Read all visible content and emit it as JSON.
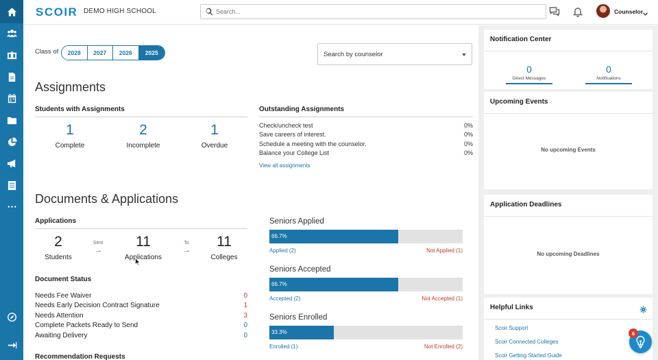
{
  "app": {
    "logo": "SCOIR",
    "school": "DEMO HIGH SCHOOL"
  },
  "search": {
    "placeholder": "Search..."
  },
  "user": {
    "name": "Counselor"
  },
  "nav": {
    "icons": [
      "home-icon",
      "students-icon",
      "colleges-icon",
      "documents-icon",
      "calendar-icon",
      "folder-icon",
      "reports-icon",
      "announcements-icon",
      "forms-icon",
      "more-icon",
      "explore-icon",
      "collapse-icon"
    ]
  },
  "filters": {
    "class_of_label": "Class of",
    "years": [
      "2028",
      "2027",
      "2026",
      "2025"
    ],
    "selected_year": "2025",
    "counselor_placeholder": "Search by counselor"
  },
  "assignments": {
    "title": "Assignments",
    "students_heading": "Students with Assignments",
    "stats": [
      {
        "value": "1",
        "label": "Complete"
      },
      {
        "value": "2",
        "label": "Incomplete"
      },
      {
        "value": "1",
        "label": "Overdue"
      }
    ],
    "outstanding_heading": "Outstanding Assignments",
    "outstanding": [
      {
        "name": "Check/uncheck test",
        "pct": "0%"
      },
      {
        "name": "Save careers of interest.",
        "pct": "0%"
      },
      {
        "name": "Schedule a meeting with the counselor.",
        "pct": "0%"
      },
      {
        "name": "Balance your College List",
        "pct": "0%"
      }
    ],
    "view_all": "View all assignments"
  },
  "docs": {
    "title": "Documents & Applications",
    "applications_heading": "Applications",
    "students": {
      "value": "2",
      "label": "Students"
    },
    "sent_label": "Sent",
    "applications": {
      "value": "11",
      "label": "Applications"
    },
    "to_label": "To",
    "colleges": {
      "value": "11",
      "label": "Colleges"
    },
    "arrow": "→",
    "status_heading": "Document Status",
    "status": [
      {
        "label": "Needs Fee Waiver",
        "count": "0",
        "color": "#c0392b"
      },
      {
        "label": "Needs Early Decision Contract Signature",
        "count": "1",
        "color": "#c0392b"
      },
      {
        "label": "Needs Attention",
        "count": "3",
        "color": "#c0392b"
      },
      {
        "label": "Complete Packets Ready to Send",
        "count": "0",
        "color": "#1a75a8"
      },
      {
        "label": "Awaiting Delivery",
        "count": "0",
        "color": "#1a75a8"
      }
    ],
    "recommendation_heading": "Recommendation Requests"
  },
  "seniors": [
    {
      "title": "Seniors Applied",
      "pct_label": "66.7%",
      "fraction": 0.667,
      "left": "Applied (2)",
      "right": "Not Applied (1)"
    },
    {
      "title": "Seniors Accepted",
      "pct_label": "66.7%",
      "fraction": 0.667,
      "left": "Accepted (2)",
      "right": "Not Accepted (1)"
    },
    {
      "title": "Seniors Enrolled",
      "pct_label": "33.3%",
      "fraction": 0.333,
      "left": "Enrolled (1)",
      "right": "Not Enrolled (2)"
    }
  ],
  "notification_center": {
    "title": "Notification Center",
    "direct_messages": {
      "value": "0",
      "label": "Direct Messages"
    },
    "notifications": {
      "value": "0",
      "label": "Notifications"
    }
  },
  "upcoming_events": {
    "title": "Upcoming Events",
    "empty": "No upcoming Events"
  },
  "deadlines": {
    "title": "Application Deadlines",
    "empty": "No upcoming Deadlines"
  },
  "helpful_links": {
    "title": "Helpful Links",
    "links": [
      "Scoir Support",
      "Scoir Connected Colleges",
      "Scoir Getting Started Guide"
    ]
  },
  "help_badge": "6",
  "colors": {
    "brand": "#1a75a8",
    "rail": "#1a75a8",
    "alert": "#c0392b",
    "bar_track": "#e2e2e2"
  }
}
